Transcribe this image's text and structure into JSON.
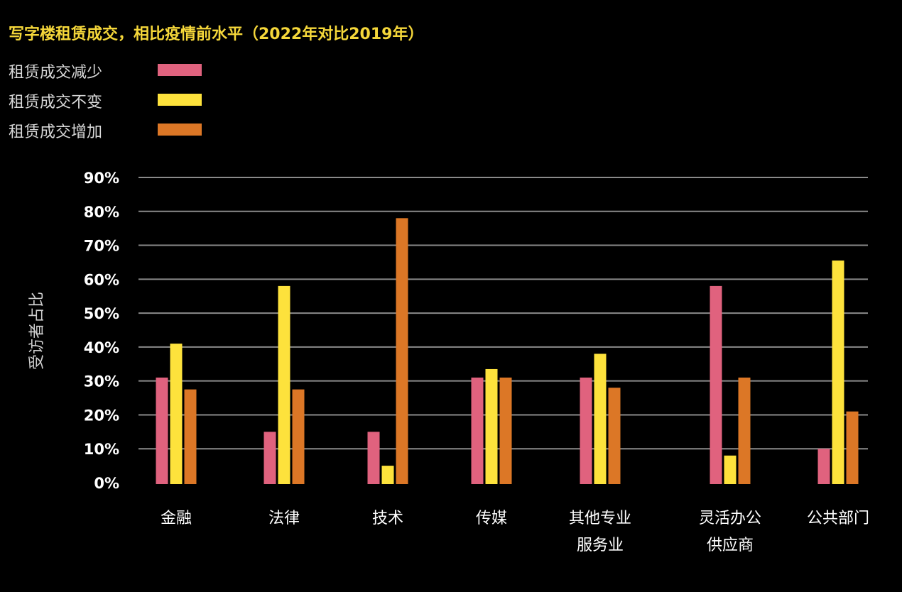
{
  "chart_data": {
    "type": "bar",
    "title": "写字楼租赁成交，相比疫情前水平（2022年对比2019年）",
    "ylabel": "受访者占比",
    "ylim": [
      0,
      90
    ],
    "yticks": [
      "0%",
      "10%",
      "20%",
      "30%",
      "40%",
      "50%",
      "60%",
      "70%",
      "80%",
      "90%"
    ],
    "grid": true,
    "legend_placement": "top-left",
    "categories": [
      [
        "金融"
      ],
      [
        "法律"
      ],
      [
        "技术"
      ],
      [
        "传媒"
      ],
      [
        "其他专业",
        "服务业"
      ],
      [
        "灵活办公",
        "供应商"
      ],
      [
        "公共部门"
      ]
    ],
    "series": [
      {
        "name": "租赁成交减少",
        "color": "#e0627e",
        "values": [
          31,
          15,
          15,
          31,
          31,
          58,
          10
        ]
      },
      {
        "name": "租赁成交不变",
        "color": "#fde23c",
        "values": [
          41,
          58,
          5,
          33.5,
          38,
          8,
          65.5
        ]
      },
      {
        "name": "租赁成交增加",
        "color": "#dc7726",
        "values": [
          27.5,
          27.5,
          78,
          31,
          28,
          31,
          21
        ]
      }
    ]
  }
}
